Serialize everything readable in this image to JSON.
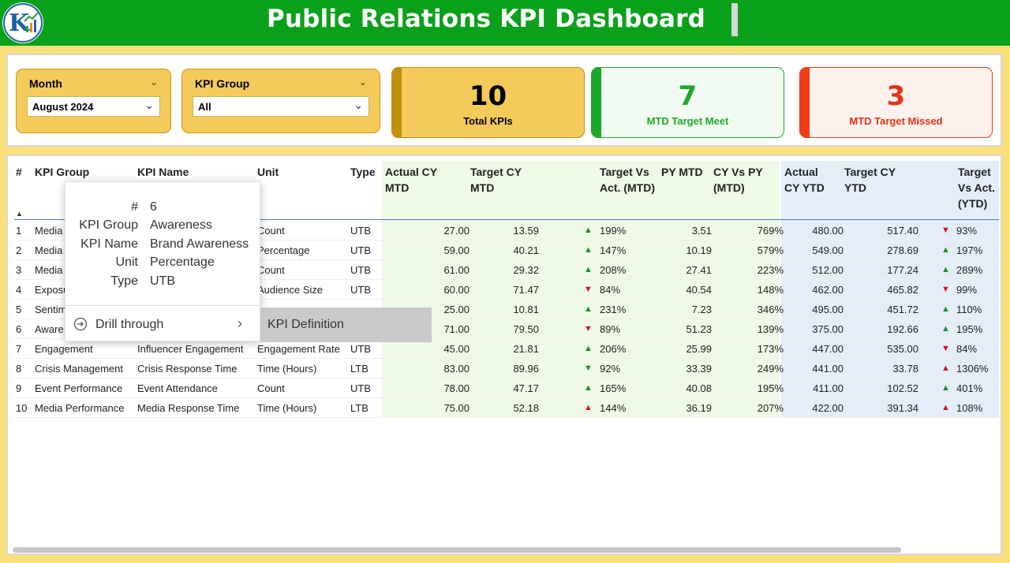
{
  "header": {
    "title": "Public Relations KPI Dashboard",
    "logo_letter": "K"
  },
  "slicers": [
    {
      "label": "Month",
      "value": "August 2024"
    },
    {
      "label": "KPI Group",
      "value": "All"
    }
  ],
  "cards": [
    {
      "value": "10",
      "label": "Total KPIs",
      "color": "#000000",
      "accent": "#c09010"
    },
    {
      "value": "7",
      "label": "MTD Target Meet",
      "color": "#1ea82a",
      "accent": "#1ea82a"
    },
    {
      "value": "3",
      "label": "MTD Target Missed",
      "color": "#e53312",
      "accent": "#f03a18"
    }
  ],
  "table": {
    "columns": {
      "idx": "#",
      "group": "KPI Group",
      "name": "KPI Name",
      "unit": "Unit",
      "type": "Type",
      "actual_mtd": "Actual CY MTD",
      "target_mtd": "Target CY MTD",
      "tva_mtd": "Target Vs Act. (MTD)",
      "py_mtd": "PY MTD",
      "cyvpy_mtd": "CY Vs PY (MTD)",
      "actual_ytd": "Actual CY YTD",
      "target_ytd": "Target CY YTD",
      "tva_ytd": "Target Vs Act. (YTD)"
    },
    "sort_icon": "sort-up-icon",
    "rows": [
      {
        "idx": "1",
        "group": "Media",
        "name": "",
        "unit": "Count",
        "type": "UTB",
        "actual_mtd": "27.00",
        "target_mtd": "13.59",
        "mtd_dir": "up",
        "tva_mtd": "199%",
        "py_mtd": "3.51",
        "cyvpy": "769%",
        "actual_ytd": "480.00",
        "target_ytd": "517.40",
        "ytd_dir": "down",
        "tva_ytd": "93%"
      },
      {
        "idx": "2",
        "group": "Media",
        "name": "",
        "unit": "Percentage",
        "type": "UTB",
        "actual_mtd": "59.00",
        "target_mtd": "40.21",
        "mtd_dir": "up",
        "tva_mtd": "147%",
        "py_mtd": "10.19",
        "cyvpy": "579%",
        "actual_ytd": "549.00",
        "target_ytd": "278.69",
        "ytd_dir": "up",
        "tva_ytd": "197%"
      },
      {
        "idx": "3",
        "group": "Media",
        "name": "",
        "unit": "Count",
        "type": "UTB",
        "actual_mtd": "61.00",
        "target_mtd": "29.32",
        "mtd_dir": "up",
        "tva_mtd": "208%",
        "py_mtd": "27.41",
        "cyvpy": "223%",
        "actual_ytd": "512.00",
        "target_ytd": "177.24",
        "ytd_dir": "up",
        "tva_ytd": "289%"
      },
      {
        "idx": "4",
        "group": "Exposu",
        "name": "",
        "unit": "Audience Size",
        "type": "UTB",
        "actual_mtd": "60.00",
        "target_mtd": "71.47",
        "mtd_dir": "down",
        "tva_mtd": "84%",
        "py_mtd": "40.54",
        "cyvpy": "148%",
        "actual_ytd": "462.00",
        "target_ytd": "465.82",
        "ytd_dir": "down",
        "tva_ytd": "99%"
      },
      {
        "idx": "5",
        "group": "Sentim",
        "name": "",
        "unit": "",
        "type": "",
        "actual_mtd": "25.00",
        "target_mtd": "10.81",
        "mtd_dir": "up",
        "tva_mtd": "231%",
        "py_mtd": "7.23",
        "cyvpy": "346%",
        "actual_ytd": "495.00",
        "target_ytd": "451.72",
        "ytd_dir": "up",
        "tva_ytd": "110%"
      },
      {
        "idx": "6",
        "group": "Aware",
        "name": "",
        "unit": "",
        "type": "",
        "actual_mtd": "71.00",
        "target_mtd": "79.50",
        "mtd_dir": "down",
        "tva_mtd": "89%",
        "py_mtd": "51.23",
        "cyvpy": "139%",
        "actual_ytd": "375.00",
        "target_ytd": "192.66",
        "ytd_dir": "up",
        "tva_ytd": "195%"
      },
      {
        "idx": "7",
        "group": "Engagement",
        "name": "Influencer Engagement",
        "unit": "Engagement Rate",
        "type": "UTB",
        "actual_mtd": "45.00",
        "target_mtd": "21.81",
        "mtd_dir": "up",
        "tva_mtd": "206%",
        "py_mtd": "25.99",
        "cyvpy": "173%",
        "actual_ytd": "447.00",
        "target_ytd": "535.00",
        "ytd_dir": "down",
        "tva_ytd": "84%"
      },
      {
        "idx": "8",
        "group": "Crisis Management",
        "name": "Crisis Response Time",
        "unit": "Time (Hours)",
        "type": "LTB",
        "actual_mtd": "83.00",
        "target_mtd": "89.96",
        "mtd_dir": "down-green",
        "tva_mtd": "92%",
        "py_mtd": "33.39",
        "cyvpy": "249%",
        "actual_ytd": "441.00",
        "target_ytd": "33.78",
        "ytd_dir": "up-red",
        "tva_ytd": "1306%"
      },
      {
        "idx": "9",
        "group": "Event Performance",
        "name": "Event Attendance",
        "unit": "Count",
        "type": "UTB",
        "actual_mtd": "78.00",
        "target_mtd": "47.17",
        "mtd_dir": "up",
        "tva_mtd": "165%",
        "py_mtd": "40.08",
        "cyvpy": "195%",
        "actual_ytd": "411.00",
        "target_ytd": "102.52",
        "ytd_dir": "up",
        "tva_ytd": "401%"
      },
      {
        "idx": "10",
        "group": "Media Performance",
        "name": "Media Response Time",
        "unit": "Time (Hours)",
        "type": "LTB",
        "actual_mtd": "75.00",
        "target_mtd": "52.18",
        "mtd_dir": "up-red",
        "tva_mtd": "144%",
        "py_mtd": "36.19",
        "cyvpy": "207%",
        "actual_ytd": "422.00",
        "target_ytd": "391.34",
        "ytd_dir": "up-red",
        "tva_ytd": "108%"
      }
    ]
  },
  "tooltip": {
    "fields": [
      {
        "key": "#",
        "value": "6"
      },
      {
        "key": "KPI Group",
        "value": "Awareness"
      },
      {
        "key": "KPI Name",
        "value": "Brand Awareness"
      },
      {
        "key": "Unit",
        "value": "Percentage"
      },
      {
        "key": "Type",
        "value": "UTB"
      }
    ],
    "drill_label": "Drill through",
    "submenu_item": "KPI Definition"
  },
  "colors": {
    "header_green": "#0aa11a",
    "page_yellow": "#fbe07a",
    "mtd_band": "#eef9e6",
    "ytd_band": "#e3eef9",
    "up_green": "#12941f",
    "down_red": "#d8111c"
  }
}
